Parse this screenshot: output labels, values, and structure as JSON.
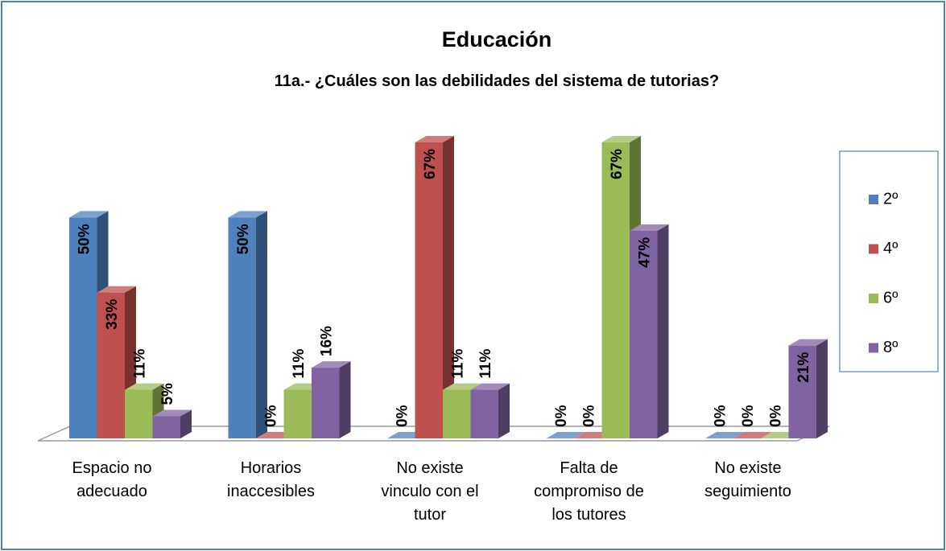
{
  "chart_data": {
    "type": "bar3d",
    "title": "Educación",
    "subtitle": "11a.- ¿Cuáles son las debilidades del sistema de tutorias?",
    "categories": [
      "Espacio no adecuado",
      "Horarios inaccesibles",
      "No existe vinculo con el tutor",
      "Falta de compromiso de los tutores",
      "No existe seguimiento"
    ],
    "series": [
      {
        "name": "2º",
        "color": "#4f81bd",
        "values": [
          50,
          50,
          0,
          0,
          0
        ],
        "value_labels": [
          "50%",
          "50%",
          "0%",
          "0%",
          "0%"
        ]
      },
      {
        "name": "4º",
        "color": "#c0504d",
        "values": [
          33,
          0,
          67,
          0,
          0
        ],
        "value_labels": [
          "33%",
          "0%",
          "67%",
          "0%",
          "0%"
        ]
      },
      {
        "name": "6º",
        "color": "#9bbb59",
        "values": [
          11,
          11,
          11,
          67,
          0
        ],
        "value_labels": [
          "11%",
          "11%",
          "11%",
          "67%",
          "0%"
        ]
      },
      {
        "name": "8º",
        "color": "#8064a2",
        "values": [
          5,
          16,
          11,
          47,
          21
        ],
        "value_labels": [
          "5%",
          "16%",
          "11%",
          "47%",
          "21%"
        ]
      }
    ],
    "legend": "right"
  }
}
